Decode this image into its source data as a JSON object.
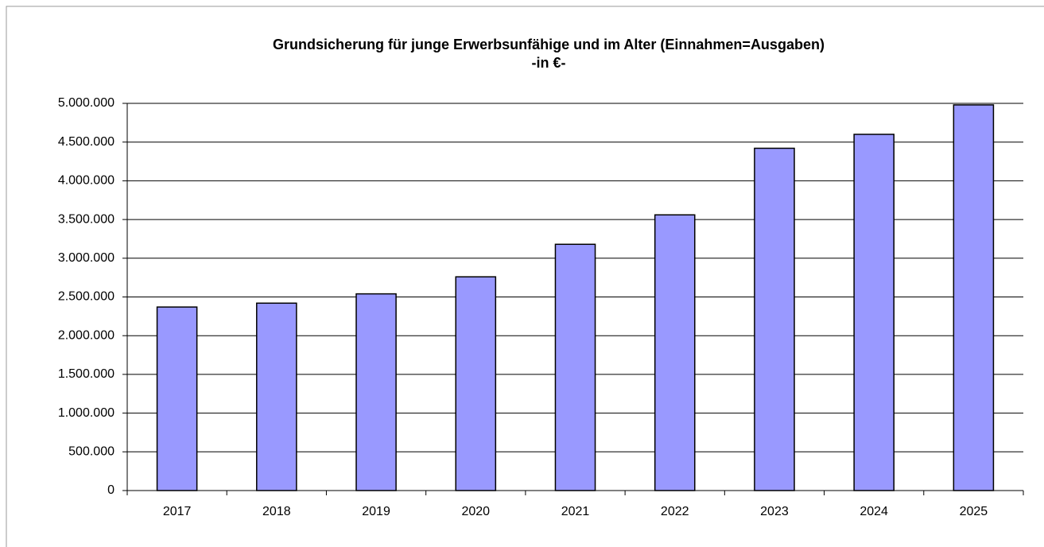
{
  "chart_data": {
    "type": "bar",
    "title": "Grundsicherung für junge Erwerbsunfähige und im Alter  (Einnahmen=Ausgaben)",
    "subtitle": "-in €-",
    "categories": [
      "2017",
      "2018",
      "2019",
      "2020",
      "2021",
      "2022",
      "2023",
      "2024",
      "2025"
    ],
    "values": [
      2370000,
      2420000,
      2540000,
      2760000,
      3180000,
      3560000,
      4420000,
      4600000,
      4980000
    ],
    "color": "#9999ff",
    "ylim": [
      0,
      5000000
    ],
    "yticks": [
      0,
      {
        "value": 500000,
        "label": "500.000"
      },
      {
        "value": 1000000,
        "label": "1.000.000"
      },
      {
        "value": 1500000,
        "label": "1.500.000"
      },
      {
        "value": 2000000,
        "label": "2.000.000"
      },
      {
        "value": 2500000,
        "label": "2.500.000"
      },
      {
        "value": 3000000,
        "label": "3.000.000"
      },
      {
        "value": 3500000,
        "label": "3.500.000"
      },
      {
        "value": 4000000,
        "label": "4.000.000"
      },
      {
        "value": 4500000,
        "label": "4.500.000"
      },
      {
        "value": 5000000,
        "label": "5.000.000"
      }
    ],
    "grid": true
  }
}
